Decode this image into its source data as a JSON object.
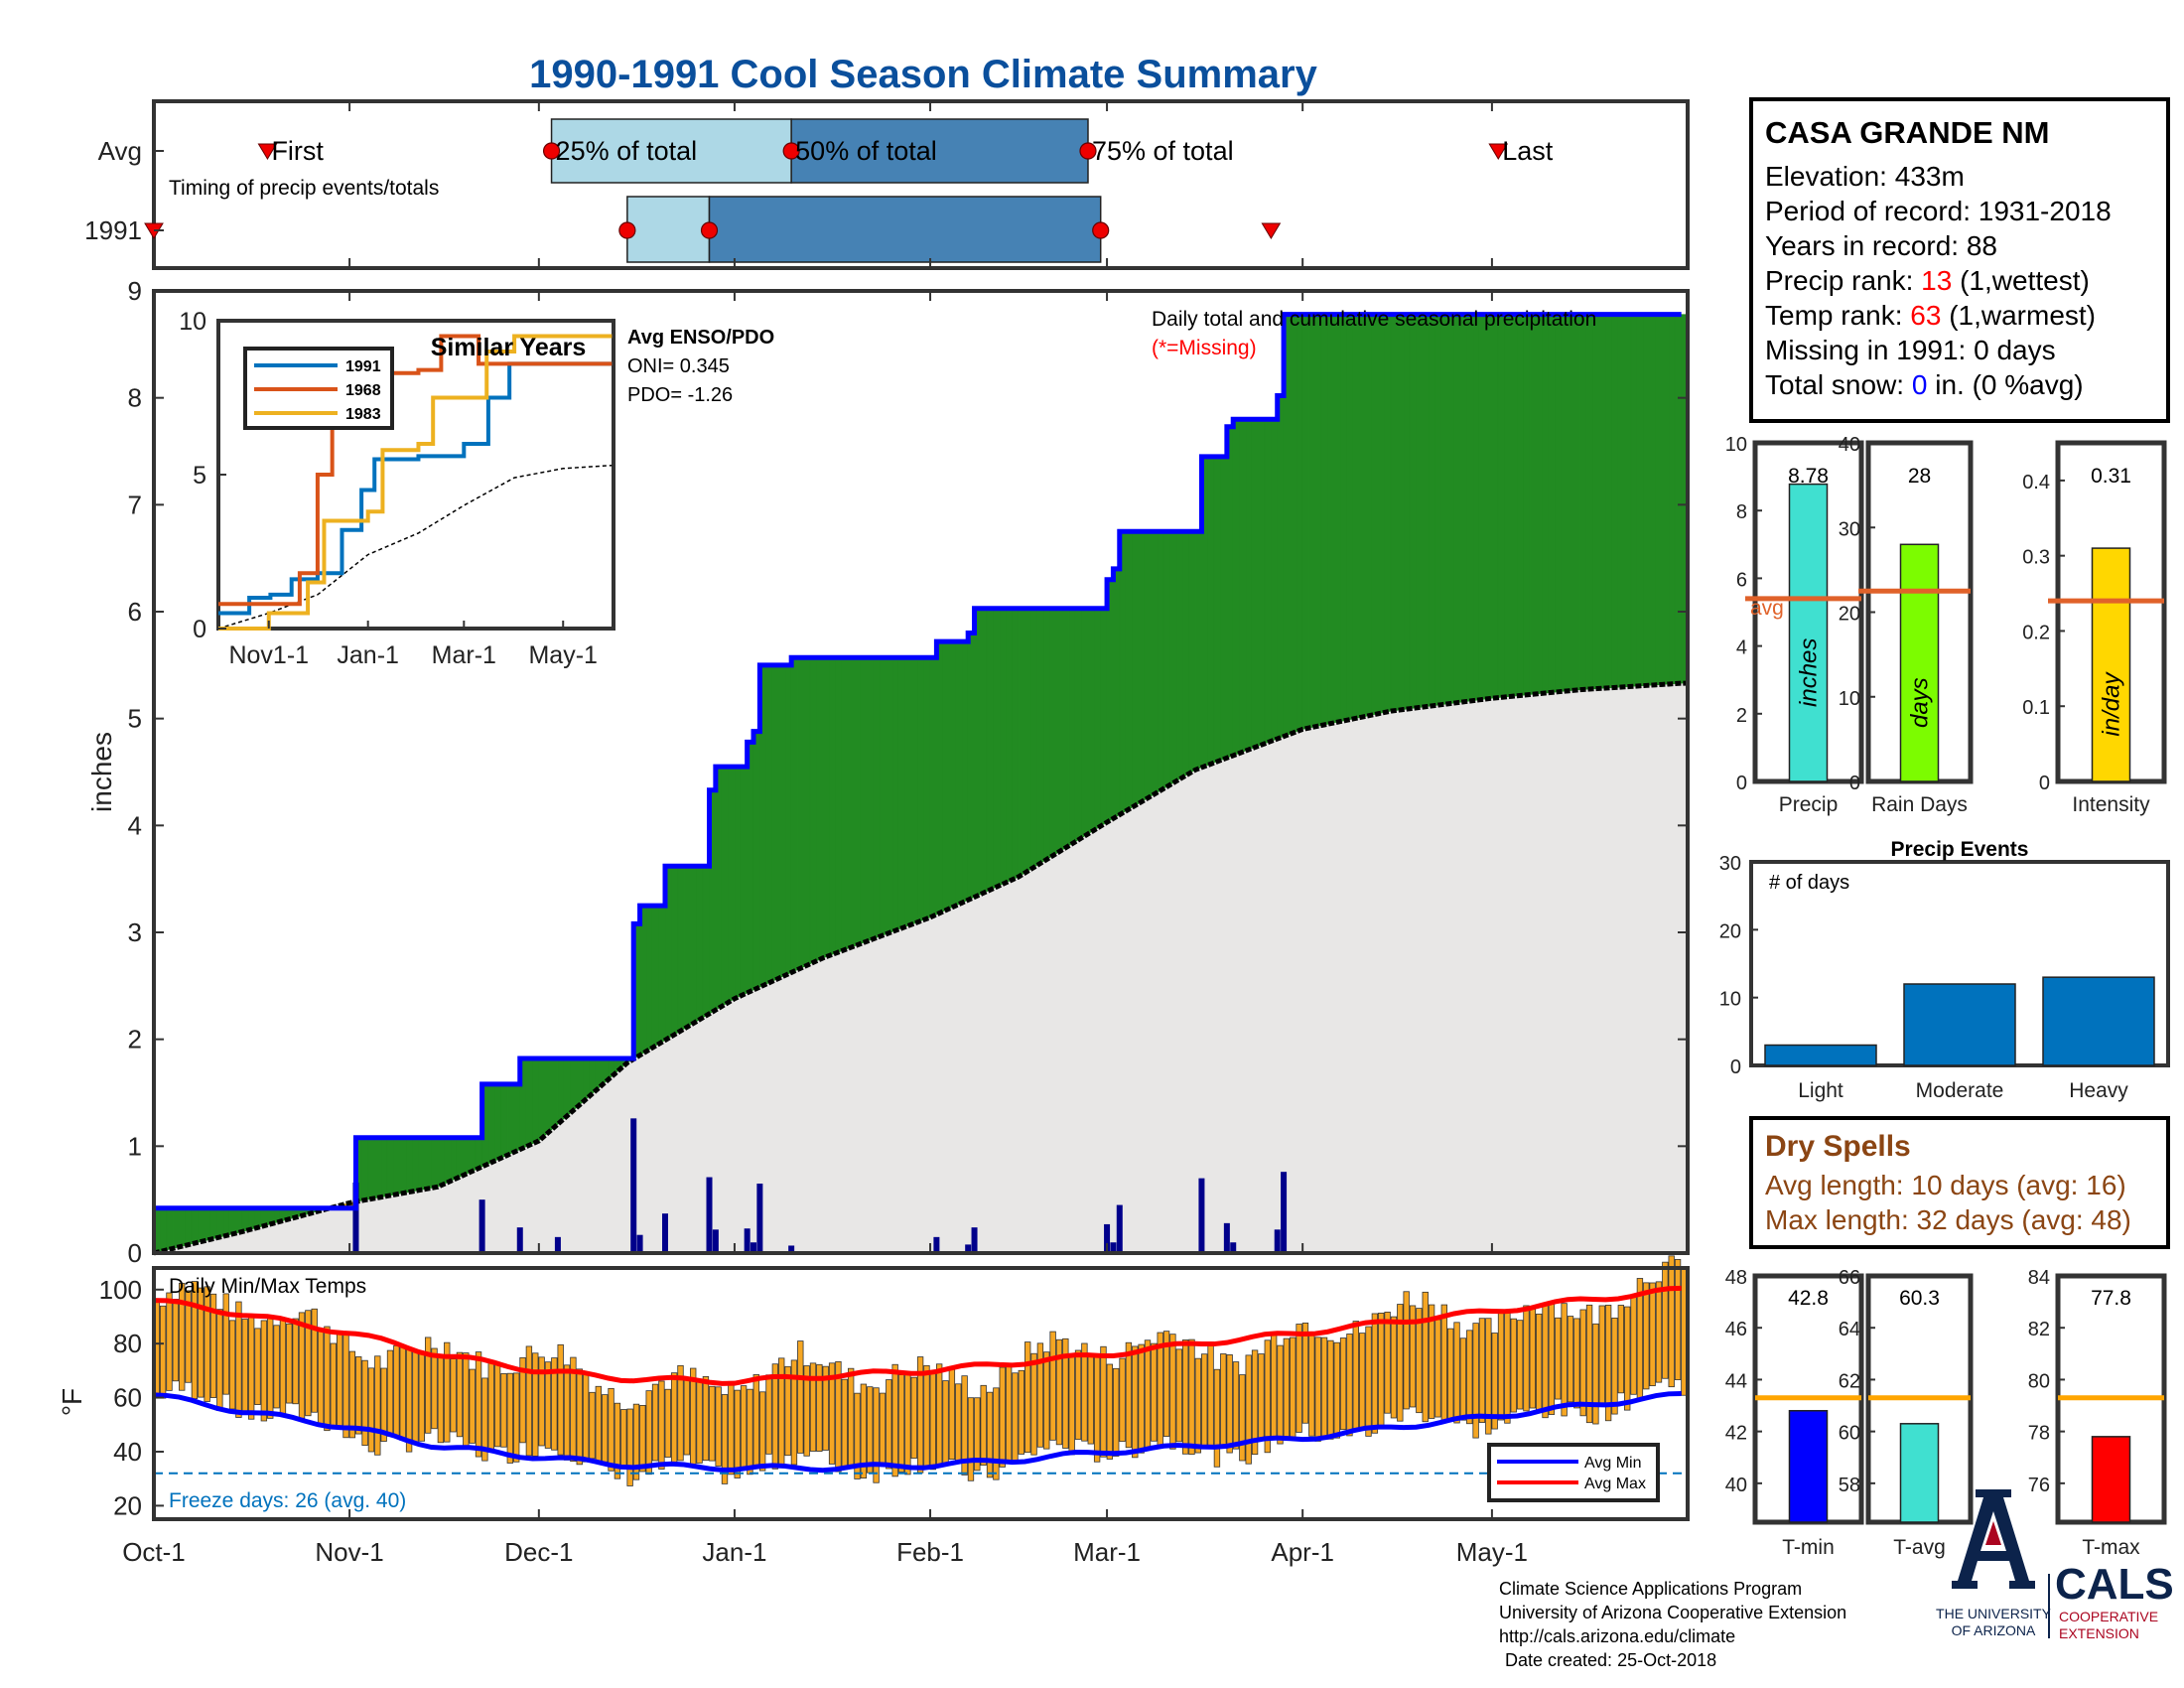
{
  "title": "1990-1991 Cool Season Climate Summary",
  "station": {
    "name": "CASA GRANDE NM",
    "elevation_label": "Elevation: 433m",
    "period_label": "Period of record: 1931-2018",
    "years_label": "Years in record: 88",
    "precip_rank_prefix": "Precip rank: ",
    "precip_rank_value": "13",
    "precip_rank_suffix": " (1,wettest)",
    "temp_rank_prefix": "Temp rank: ",
    "temp_rank_value": "63",
    "temp_rank_suffix": " (1,warmest)",
    "missing_label": "Missing in 1991: 0 days",
    "snow_prefix": "Total snow: ",
    "snow_value": "0",
    "snow_suffix": " in. (0 %avg)"
  },
  "credits": {
    "line1": "Climate Science Applications Program",
    "line2": "University of Arizona Cooperative Extension",
    "line3": "http://cals.arizona.edu/climate",
    "line4": "Date created: 25-Oct-2018",
    "ua_lines": [
      "THE UNIVERSITY",
      "OF ARIZONA"
    ],
    "cals": "CALS",
    "cals_sub": [
      "COOPERATIVE",
      "EXTENSION"
    ]
  },
  "colors": {
    "title": "#0a4f9c",
    "green": "#228b22",
    "gray": "#e8e7e6",
    "blue_line": "#0000ff",
    "navy_bars": "#00008b",
    "light_box": "#add8e6",
    "dark_box": "#4682b4",
    "avg_line": "#e0622a",
    "orange_bars": "#f5a623",
    "dry_text": "#8b4513",
    "red": "#ff0000"
  },
  "chart_data": [
    {
      "id": "timing",
      "type": "timeline",
      "title": "Timing of precip events/totals",
      "x_tick_labels": [
        "Oct-1",
        "Nov-1",
        "Dec-1",
        "Jan-1",
        "Feb-1",
        "Mar-1",
        "Apr-1",
        "May-1"
      ],
      "rows": [
        {
          "label": "Avg",
          "first": "Oct-19",
          "p25": "Dec-3",
          "p50": "Jan-10",
          "p75": "Feb-26",
          "last": "May-2",
          "labels": {
            "first": "First",
            "p25": "25% of total",
            "p50": "50% of total",
            "p75": "75% of total",
            "last": "Last"
          }
        },
        {
          "label": "1991",
          "first": "Oct-1",
          "p25": "Dec-15",
          "p50": "Dec-28",
          "p75": "Feb-28",
          "last": "Mar-27"
        }
      ]
    },
    {
      "id": "precip",
      "type": "area",
      "annotation": "Daily total and cumulative seasonal precipitation",
      "missing_note": "(*=Missing)",
      "ylabel": "inches",
      "ylim": [
        0,
        9
      ],
      "yticks": [
        0,
        1,
        2,
        3,
        4,
        5,
        6,
        7,
        8,
        9
      ],
      "xlim": [
        "Oct-1",
        "May-31"
      ],
      "cumulative_1991": [
        [
          "Oct-1",
          0.42
        ],
        [
          "Nov-1",
          0.42
        ],
        [
          "Nov-2",
          1.08
        ],
        [
          "Nov-21",
          1.08
        ],
        [
          "Nov-22",
          1.58
        ],
        [
          "Nov-27",
          1.58
        ],
        [
          "Nov-28",
          1.82
        ],
        [
          "Dec-15",
          1.82
        ],
        [
          "Dec-16",
          3.08
        ],
        [
          "Dec-17",
          3.25
        ],
        [
          "Dec-20",
          3.25
        ],
        [
          "Dec-21",
          3.62
        ],
        [
          "Dec-27",
          3.62
        ],
        [
          "Dec-28",
          4.33
        ],
        [
          "Dec-29",
          4.55
        ],
        [
          "Jan-2",
          4.55
        ],
        [
          "Jan-3",
          4.78
        ],
        [
          "Jan-4",
          4.88
        ],
        [
          "Jan-5",
          5.5
        ],
        [
          "Jan-9",
          5.5
        ],
        [
          "Jan-10",
          5.57
        ],
        [
          "Feb-1",
          5.57
        ],
        [
          "Feb-2",
          5.72
        ],
        [
          "Feb-6",
          5.72
        ],
        [
          "Feb-7",
          5.8
        ],
        [
          "Feb-8",
          6.03
        ],
        [
          "Feb-28",
          6.03
        ],
        [
          "Mar-1",
          6.3
        ],
        [
          "Mar-2",
          6.4
        ],
        [
          "Mar-3",
          6.75
        ],
        [
          "Mar-15",
          6.75
        ],
        [
          "Mar-16",
          7.45
        ],
        [
          "Mar-19",
          7.45
        ],
        [
          "Mar-20",
          7.73
        ],
        [
          "Mar-21",
          7.8
        ],
        [
          "Mar-27",
          7.8
        ],
        [
          "Mar-28",
          8.02
        ],
        [
          "Mar-29",
          8.78
        ],
        [
          "May-31",
          8.78
        ]
      ],
      "cumulative_avg": [
        [
          "Oct-1",
          0.0
        ],
        [
          "Oct-15",
          0.2
        ],
        [
          "Nov-1",
          0.47
        ],
        [
          "Nov-15",
          0.62
        ],
        [
          "Dec-1",
          1.05
        ],
        [
          "Dec-15",
          1.78
        ],
        [
          "Jan-1",
          2.38
        ],
        [
          "Jan-15",
          2.76
        ],
        [
          "Feb-1",
          3.14
        ],
        [
          "Feb-15",
          3.52
        ],
        [
          "Mar-1",
          4.03
        ],
        [
          "Mar-15",
          4.52
        ],
        [
          "Apr-1",
          4.9
        ],
        [
          "Apr-15",
          5.07
        ],
        [
          "May-1",
          5.19
        ],
        [
          "May-15",
          5.27
        ],
        [
          "May-31",
          5.33
        ]
      ],
      "daily_1991": [
        [
          "Nov-2",
          0.66
        ],
        [
          "Nov-22",
          0.5
        ],
        [
          "Nov-28",
          0.24
        ],
        [
          "Dec-4",
          0.15
        ],
        [
          "Dec-16",
          1.26
        ],
        [
          "Dec-17",
          0.17
        ],
        [
          "Dec-21",
          0.37
        ],
        [
          "Dec-28",
          0.71
        ],
        [
          "Dec-29",
          0.22
        ],
        [
          "Jan-3",
          0.23
        ],
        [
          "Jan-4",
          0.1
        ],
        [
          "Jan-5",
          0.65
        ],
        [
          "Jan-10",
          0.07
        ],
        [
          "Feb-2",
          0.15
        ],
        [
          "Feb-7",
          0.08
        ],
        [
          "Feb-8",
          0.24
        ],
        [
          "Mar-1",
          0.27
        ],
        [
          "Mar-2",
          0.1
        ],
        [
          "Mar-3",
          0.45
        ],
        [
          "Mar-16",
          0.7
        ],
        [
          "Mar-20",
          0.28
        ],
        [
          "Mar-21",
          0.1
        ],
        [
          "Mar-28",
          0.22
        ],
        [
          "Mar-29",
          0.76
        ]
      ]
    },
    {
      "id": "similar_years",
      "type": "line",
      "title": "Similar Years",
      "x_tick_labels": [
        "Nov1-1",
        "Jan-1",
        "Mar-1",
        "May-1"
      ],
      "ylim": [
        0,
        10
      ],
      "yticks": [
        0,
        5,
        10
      ],
      "series": [
        {
          "name": "1991",
          "color": "#0072bd",
          "values": [
            [
              "Oct-1",
              0.5
            ],
            [
              "Oct-20",
              1.0
            ],
            [
              "Nov-2",
              1.1
            ],
            [
              "Nov-15",
              1.6
            ],
            [
              "Dec-1",
              1.8
            ],
            [
              "Dec-16",
              3.2
            ],
            [
              "Dec-28",
              4.5
            ],
            [
              "Jan-5",
              5.5
            ],
            [
              "Feb-1",
              5.6
            ],
            [
              "Mar-1",
              6.0
            ],
            [
              "Mar-16",
              7.5
            ],
            [
              "Mar-29",
              8.6
            ],
            [
              "May-31",
              8.6
            ]
          ]
        },
        {
          "name": "1968",
          "color": "#d95319",
          "values": [
            [
              "Oct-1",
              0.8
            ],
            [
              "Nov-1",
              0.8
            ],
            [
              "Nov-20",
              1.8
            ],
            [
              "Dec-1",
              5.0
            ],
            [
              "Dec-10",
              7.9
            ],
            [
              "Jan-1",
              7.9
            ],
            [
              "Jan-5",
              8.3
            ],
            [
              "Feb-1",
              8.4
            ],
            [
              "Feb-15",
              9.5
            ],
            [
              "Mar-1",
              9.5
            ],
            [
              "Mar-10",
              8.6
            ],
            [
              "May-31",
              8.6
            ]
          ]
        },
        {
          "name": "1983",
          "color": "#edb120",
          "values": [
            [
              "Oct-1",
              0.0
            ],
            [
              "Nov-1",
              0.5
            ],
            [
              "Nov-25",
              1.5
            ],
            [
              "Dec-5",
              3.5
            ],
            [
              "Jan-1",
              3.8
            ],
            [
              "Jan-10",
              5.8
            ],
            [
              "Feb-1",
              6.0
            ],
            [
              "Feb-10",
              7.5
            ],
            [
              "Mar-1",
              7.5
            ],
            [
              "Mar-15",
              9.0
            ],
            [
              "Apr-1",
              9.5
            ],
            [
              "May-31",
              9.5
            ]
          ]
        }
      ],
      "avg_curve": [
        [
          "Oct-1",
          0.0
        ],
        [
          "Nov-1",
          0.5
        ],
        [
          "Dec-1",
          1.1
        ],
        [
          "Jan-1",
          2.4
        ],
        [
          "Feb-1",
          3.1
        ],
        [
          "Mar-1",
          4.0
        ],
        [
          "Apr-1",
          4.9
        ],
        [
          "May-1",
          5.2
        ],
        [
          "May-31",
          5.3
        ]
      ]
    },
    {
      "id": "temps",
      "type": "bar",
      "title": "Daily Min/Max Temps",
      "ylabel": "°F",
      "ylim": [
        15,
        108
      ],
      "yticks": [
        20,
        40,
        60,
        80,
        100
      ],
      "freeze_line": 32,
      "freeze_label": "Freeze days: 26 (avg. 40)",
      "series": [
        {
          "name": "Avg Min",
          "color": "#0000ff",
          "values": [
            [
              "Oct-1",
              61
            ],
            [
              "Oct-15",
              55
            ],
            [
              "Nov-1",
              49
            ],
            [
              "Nov-15",
              42
            ],
            [
              "Dec-1",
              38
            ],
            [
              "Dec-15",
              35
            ],
            [
              "Jan-1",
              34
            ],
            [
              "Jan-15",
              34
            ],
            [
              "Feb-1",
              35
            ],
            [
              "Feb-15",
              37
            ],
            [
              "Mar-1",
              40
            ],
            [
              "Mar-15",
              42
            ],
            [
              "Apr-1",
              45
            ],
            [
              "Apr-15",
              49
            ],
            [
              "May-1",
              53
            ],
            [
              "May-15",
              57
            ],
            [
              "May-31",
              61
            ]
          ]
        },
        {
          "name": "Avg Max",
          "color": "#ff0000",
          "values": [
            [
              "Oct-1",
              96
            ],
            [
              "Oct-15",
              91
            ],
            [
              "Nov-1",
              84
            ],
            [
              "Nov-15",
              76
            ],
            [
              "Dec-1",
              70
            ],
            [
              "Dec-15",
              67
            ],
            [
              "Jan-1",
              66
            ],
            [
              "Jan-15",
              68
            ],
            [
              "Feb-1",
              70
            ],
            [
              "Feb-15",
              73
            ],
            [
              "Mar-1",
              76
            ],
            [
              "Mar-15",
              80
            ],
            [
              "Apr-1",
              84
            ],
            [
              "Apr-15",
              88
            ],
            [
              "May-1",
              92
            ],
            [
              "May-15",
              96
            ],
            [
              "May-31",
              100
            ]
          ]
        }
      ],
      "bars_note": "daily min-max range bars (orange) for 1990-1991"
    },
    {
      "id": "season_totals",
      "type": "bar",
      "panels": [
        {
          "category": "Precip",
          "unit": "inches",
          "value": 8.78,
          "value_label": "8.78",
          "avg": 5.4,
          "avg_label": "avg",
          "ylim": [
            0,
            10
          ],
          "yticks": [
            0,
            2,
            4,
            6,
            8,
            10
          ],
          "color": "#40e0d0"
        },
        {
          "category": "Rain Days",
          "unit": "days",
          "value": 28,
          "value_label": "28",
          "avg": 22.5,
          "ylim": [
            0,
            40
          ],
          "yticks": [
            0,
            10,
            20,
            30,
            40
          ],
          "color": "#7cfc00"
        },
        {
          "category": "Intensity",
          "unit": "in/day",
          "value": 0.31,
          "value_label": "0.31",
          "avg": 0.24,
          "ylim": [
            0,
            0.45
          ],
          "yticks": [
            0,
            0.1,
            0.2,
            0.3,
            0.4
          ],
          "color": "#ffd700"
        }
      ]
    },
    {
      "id": "precip_events",
      "type": "bar",
      "title": "Precip Events",
      "annotation": "# of days",
      "categories": [
        "Light",
        "Moderate",
        "Heavy"
      ],
      "values": [
        3,
        12,
        13
      ],
      "ylim": [
        0,
        30
      ],
      "yticks": [
        0,
        10,
        20,
        30
      ],
      "color": "#0072bd"
    },
    {
      "id": "temp_totals",
      "type": "bar",
      "panels": [
        {
          "category": "T-min",
          "value": 42.8,
          "value_label": "42.8",
          "avg": 43.3,
          "ylim": [
            38.5,
            48
          ],
          "yticks": [
            40,
            42,
            44,
            46,
            48
          ],
          "color": "#0000ff"
        },
        {
          "category": "T-avg",
          "value": 60.3,
          "value_label": "60.3",
          "avg": 61.3,
          "ylim": [
            56.5,
            66
          ],
          "yticks": [
            58,
            60,
            62,
            64,
            66
          ],
          "color": "#40e0d0"
        },
        {
          "category": "T-max",
          "value": 77.8,
          "value_label": "77.8",
          "avg": 79.3,
          "ylim": [
            74.5,
            84
          ],
          "yticks": [
            76,
            78,
            80,
            82,
            84
          ],
          "color": "#ff0000"
        }
      ]
    }
  ],
  "enso": {
    "title": "Avg ENSO/PDO",
    "oni": "ONI= 0.345",
    "pdo": "PDO= -1.26"
  },
  "dry_spells": {
    "title": "Dry Spells",
    "avg_length": "Avg length: 10 days (avg: 16)",
    "max_length": "Max length: 32 days (avg: 48)"
  }
}
